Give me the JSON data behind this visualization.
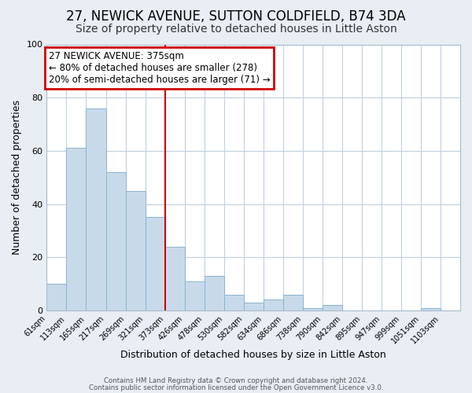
{
  "title": "27, NEWICK AVENUE, SUTTON COLDFIELD, B74 3DA",
  "subtitle": "Size of property relative to detached houses in Little Aston",
  "xlabel": "Distribution of detached houses by size in Little Aston",
  "ylabel": "Number of detached properties",
  "footer_line1": "Contains HM Land Registry data © Crown copyright and database right 2024.",
  "footer_line2": "Contains public sector information licensed under the Open Government Licence v3.0.",
  "bin_labels": [
    "61sqm",
    "113sqm",
    "165sqm",
    "217sqm",
    "269sqm",
    "321sqm",
    "373sqm",
    "426sqm",
    "478sqm",
    "530sqm",
    "582sqm",
    "634sqm",
    "686sqm",
    "738sqm",
    "790sqm",
    "842sqm",
    "895sqm",
    "947sqm",
    "999sqm",
    "1051sqm",
    "1103sqm"
  ],
  "bar_values": [
    10,
    61,
    76,
    52,
    45,
    35,
    24,
    11,
    13,
    6,
    3,
    4,
    6,
    1,
    2,
    0,
    0,
    0,
    0,
    1,
    0
  ],
  "bar_color": "#c8daea",
  "bar_edgecolor": "#8ab4d0",
  "vline_bin_index": 6,
  "vline_color": "#cc0000",
  "annotation_title": "27 NEWICK AVENUE: 375sqm",
  "annotation_line1": "← 80% of detached houses are smaller (278)",
  "annotation_line2": "20% of semi-detached houses are larger (71) →",
  "annotation_box_edgecolor": "#cc0000",
  "ylim": [
    0,
    100
  ],
  "background_color": "#e8eef4",
  "plot_background": "#ffffff",
  "grid_color": "#c0d0e0",
  "title_fontsize": 12,
  "subtitle_fontsize": 10
}
